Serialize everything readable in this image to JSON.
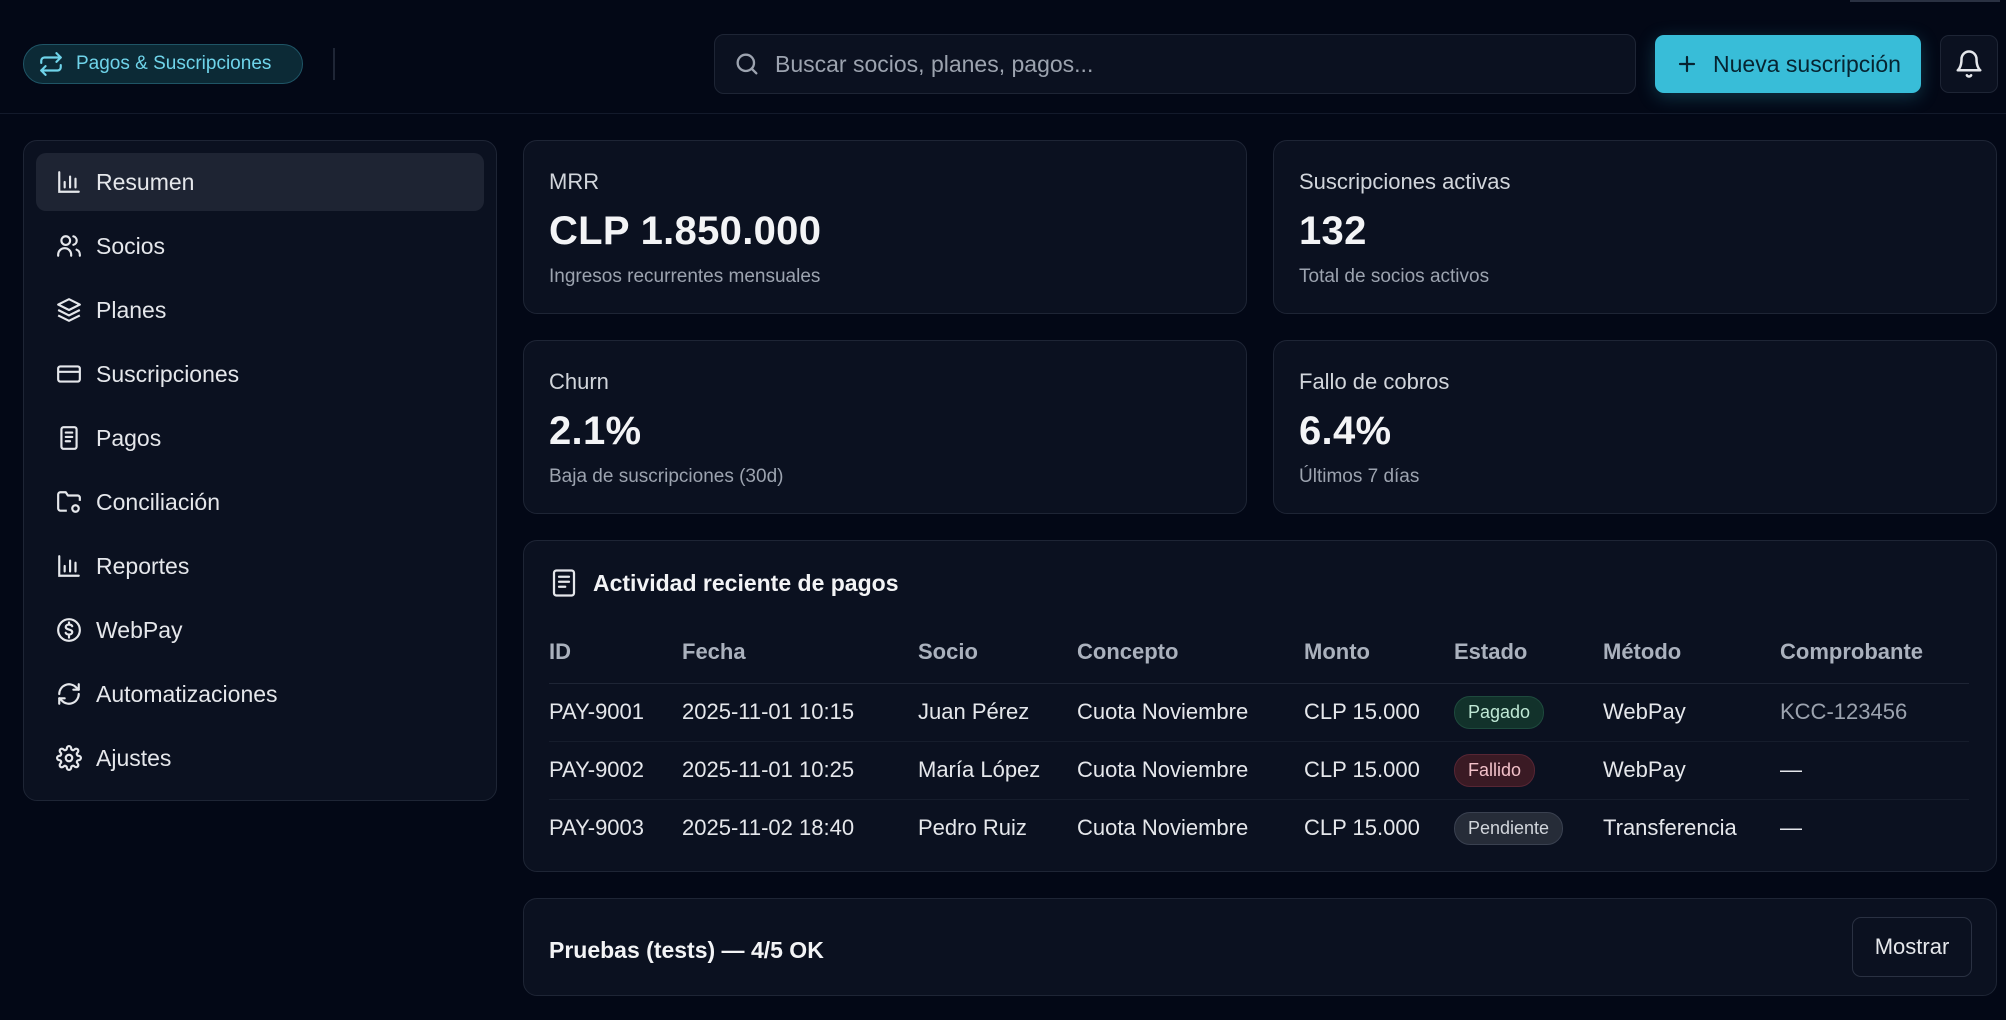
{
  "header": {
    "brand_label": "Pagos & Suscripciones",
    "search_placeholder": "Buscar socios, planes, pagos...",
    "new_button_label": "Nueva suscripción"
  },
  "sidebar": {
    "items": [
      {
        "label": "Resumen",
        "icon": "bar-chart-icon",
        "active": true
      },
      {
        "label": "Socios",
        "icon": "users-icon"
      },
      {
        "label": "Planes",
        "icon": "layers-icon"
      },
      {
        "label": "Suscripciones",
        "icon": "credit-card-icon"
      },
      {
        "label": "Pagos",
        "icon": "receipt-icon"
      },
      {
        "label": "Conciliación",
        "icon": "folder-cog-icon"
      },
      {
        "label": "Reportes",
        "icon": "bar-chart-icon"
      },
      {
        "label": "WebPay",
        "icon": "dollar-circle-icon"
      },
      {
        "label": "Automatizaciones",
        "icon": "refresh-icon"
      },
      {
        "label": "Ajustes",
        "icon": "gear-icon"
      }
    ]
  },
  "stats": [
    {
      "label": "MRR",
      "value": "CLP 1.850.000",
      "sub": "Ingresos recurrentes mensuales"
    },
    {
      "label": "Suscripciones activas",
      "value": "132",
      "sub": "Total de socios activos"
    },
    {
      "label": "Churn",
      "value": "2.1%",
      "sub": "Baja de suscripciones (30d)"
    },
    {
      "label": "Fallo de cobros",
      "value": "6.4%",
      "sub": "Últimos 7 días"
    }
  ],
  "activity": {
    "title": "Actividad reciente de pagos",
    "columns": [
      "ID",
      "Fecha",
      "Socio",
      "Concepto",
      "Monto",
      "Estado",
      "Método",
      "Comprobante"
    ],
    "rows": [
      {
        "id": "PAY-9001",
        "date": "2025-11-01 10:15",
        "member": "Juan Pérez",
        "concept": "Cuota Noviembre",
        "amount": "CLP 15.000",
        "status": "Pagado",
        "method": "WebPay",
        "receipt": "KCC-123456"
      },
      {
        "id": "PAY-9002",
        "date": "2025-11-01 10:25",
        "member": "María López",
        "concept": "Cuota Noviembre",
        "amount": "CLP 15.000",
        "status": "Fallido",
        "method": "WebPay",
        "receipt": "—"
      },
      {
        "id": "PAY-9003",
        "date": "2025-11-02 18:40",
        "member": "Pedro Ruiz",
        "concept": "Cuota Noviembre",
        "amount": "CLP 15.000",
        "status": "Pendiente",
        "method": "Transferencia",
        "receipt": "—"
      }
    ]
  },
  "tests": {
    "title": "Pruebas (tests) — 4/5 OK",
    "button_label": "Mostrar"
  },
  "colors": {
    "accent": "#38bdd8",
    "background": "#030816",
    "card": "#0b1120"
  }
}
